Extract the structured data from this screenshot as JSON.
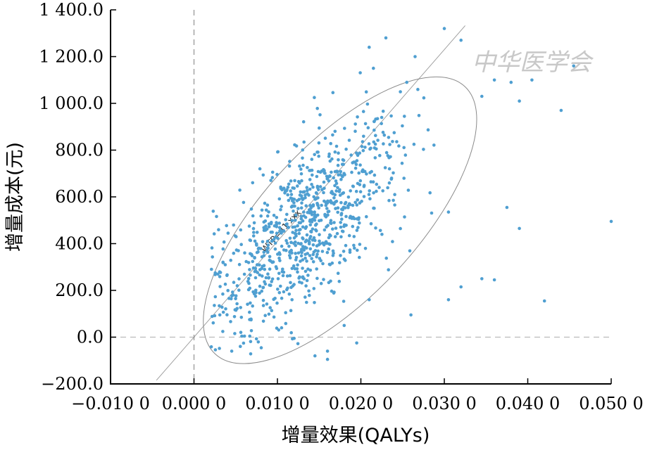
{
  "chart_data": {
    "type": "scatter",
    "xlabel": "增量效果(QALYs)",
    "ylabel": "增量成本(元)",
    "xlim": [
      -0.01,
      0.05
    ],
    "ylim": [
      -200,
      1400
    ],
    "x_ticks": [
      -0.01,
      0.0,
      0.01,
      0.02,
      0.03,
      0.04,
      0.05
    ],
    "x_tick_labels": [
      "−0.010 0",
      "0.000 0",
      "0.010 0",
      "0.020 0",
      "0.030 0",
      "0.040 0",
      "0.050 0"
    ],
    "y_ticks": [
      -200,
      0,
      200,
      400,
      600,
      800,
      1000,
      1200,
      1400
    ],
    "y_tick_labels": [
      "−200.0",
      "0.0",
      "200.0",
      "400.0",
      "600.0",
      "800.0",
      "1 000.0",
      "1 200.0",
      "1 400.0"
    ],
    "annotation": "WTP=41 xxx",
    "wtp_line_slope": 41000,
    "reference_lines": {
      "x": 0,
      "y": 0
    },
    "ellipse": {
      "center": [
        0.0175,
        500
      ],
      "description": "95% confidence ellipse"
    },
    "point_color": "#4f9fd1",
    "point_count": 900,
    "sample_points": [
      [
        0.0031,
        95
      ],
      [
        0.0047,
        180
      ],
      [
        0.0079,
        720
      ],
      [
        0.0105,
        40
      ],
      [
        0.012,
        -5
      ],
      [
        0.016,
        -95
      ],
      [
        0.016,
        -60
      ],
      [
        0.0145,
        -80
      ],
      [
        0.0195,
        -25
      ],
      [
        0.021,
        1240
      ],
      [
        0.023,
        1280
      ],
      [
        0.0215,
        1150
      ],
      [
        0.0255,
        1090
      ],
      [
        0.0265,
        1200
      ],
      [
        0.03,
        1320
      ],
      [
        0.032,
        1270
      ],
      [
        0.0345,
        1030
      ],
      [
        0.036,
        1100
      ],
      [
        0.038,
        1090
      ],
      [
        0.039,
        1010
      ],
      [
        0.0405,
        1100
      ],
      [
        0.044,
        970
      ],
      [
        0.0455,
        1160
      ],
      [
        0.05,
        495
      ],
      [
        0.042,
        155
      ],
      [
        0.039,
        465
      ],
      [
        0.0375,
        555
      ],
      [
        0.036,
        245
      ],
      [
        0.0345,
        250
      ],
      [
        0.032,
        215
      ],
      [
        0.0305,
        160
      ],
      [
        0.0305,
        535
      ],
      [
        0.026,
        95
      ],
      [
        0.021,
        160
      ],
      [
        0.018,
        50
      ]
    ]
  },
  "watermark": "中华医学会"
}
